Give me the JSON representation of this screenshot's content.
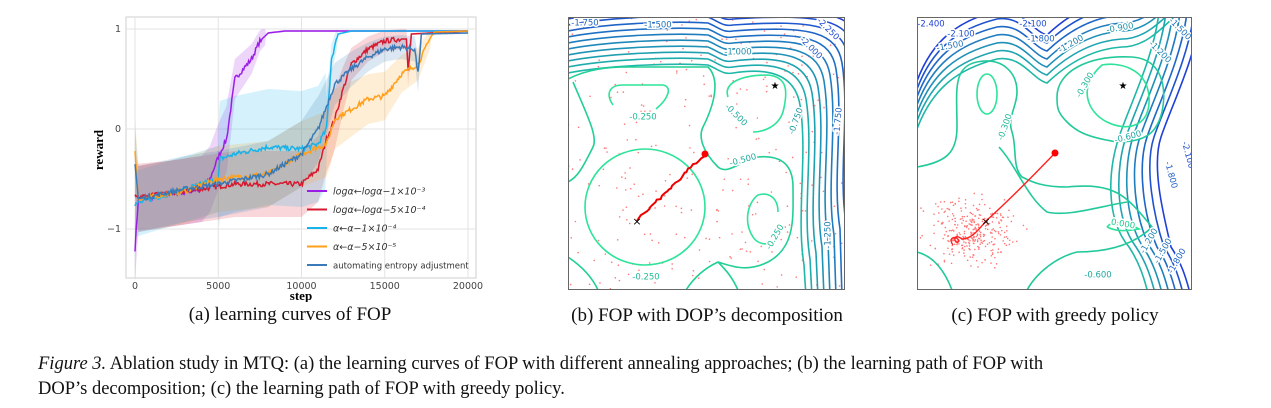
{
  "figure": {
    "subcaptions": [
      "(a) learning curves of FOP",
      "(b) FOP with DOP’s decomposition",
      "(c) FOP with greedy policy"
    ],
    "caption_label": "Figure 3.",
    "caption_line1": " Ablation study in MTQ: (a) the learning curves of FOP with different annealing approaches; (b) the learning path of FOP with",
    "caption_line2": "DOP’s decomposition; (c) the learning path of FOP with greedy policy."
  },
  "chart_data": [
    {
      "type": "line",
      "xlabel": "step",
      "ylabel": "reward",
      "xlim": [
        -500,
        20500
      ],
      "ylim": [
        -1.45,
        1.12
      ],
      "xticks": [
        0,
        5000,
        10000,
        15000,
        20000
      ],
      "xtick_labels": [
        "0",
        "5000",
        "10000",
        "15000",
        "20000"
      ],
      "yticks": [
        1,
        0,
        -1
      ],
      "ytick_labels": [
        "1",
        "0",
        "−1"
      ],
      "grid": true,
      "legend_placement": "lower-right",
      "shaded_bands": true,
      "series": [
        {
          "name": "logα←logα−1×10⁻³",
          "color": "#9b1ee6",
          "x": [
            0,
            200,
            2000,
            4000,
            4500,
            5000,
            5500,
            6000,
            7000,
            7500,
            8000,
            9000,
            20000
          ],
          "y": [
            -1.2,
            -0.7,
            -0.65,
            -0.6,
            -0.5,
            -0.28,
            -0.1,
            0.5,
            0.7,
            0.88,
            0.96,
            0.98,
            0.98
          ]
        },
        {
          "name": "logα←logα−5×10⁻⁴",
          "color": "#d7192f",
          "x": [
            0,
            2000,
            4000,
            6000,
            8000,
            10000,
            11000,
            11500,
            12000,
            12500,
            13000,
            14000,
            15000,
            16000,
            16300,
            16400,
            16600,
            20000
          ],
          "y": [
            -0.68,
            -0.65,
            -0.6,
            -0.55,
            -0.55,
            -0.55,
            -0.4,
            -0.1,
            0.1,
            0.4,
            0.65,
            0.8,
            0.88,
            0.9,
            0.9,
            0.6,
            0.95,
            0.98
          ]
        },
        {
          "name": "α←α−1×10⁻⁴",
          "color": "#17b3ea",
          "x": [
            0,
            3000,
            5000,
            5100,
            6000,
            8000,
            10000,
            11000,
            11500,
            11800,
            12200,
            13000,
            20000
          ],
          "y": [
            -0.75,
            -0.6,
            -0.5,
            -0.3,
            -0.25,
            -0.18,
            -0.2,
            -0.15,
            0.0,
            0.7,
            0.95,
            0.98,
            0.98
          ]
        },
        {
          "name": "α←α−5×10⁻⁵",
          "color": "#ff9f1a",
          "x": [
            0,
            200,
            3000,
            5000,
            8000,
            10000,
            11500,
            12000,
            13000,
            14000,
            15000,
            16000,
            17000,
            17800,
            18000,
            20000
          ],
          "y": [
            -0.2,
            -0.7,
            -0.62,
            -0.5,
            -0.45,
            -0.25,
            -0.15,
            0.1,
            0.2,
            0.3,
            0.33,
            0.55,
            0.65,
            0.93,
            0.97,
            0.98
          ]
        },
        {
          "name": "automating entropy adjustment",
          "color": "#3a7ab8",
          "x": [
            0,
            200,
            3000,
            5000,
            8000,
            10000,
            11000,
            12000,
            13000,
            14000,
            15000,
            16000,
            16800,
            17000,
            17200,
            20000
          ],
          "y": [
            -0.33,
            -0.7,
            -0.6,
            -0.55,
            -0.45,
            -0.25,
            0.0,
            0.45,
            0.6,
            0.72,
            0.8,
            0.82,
            0.8,
            0.55,
            0.95,
            0.96
          ]
        }
      ]
    },
    {
      "type": "contour",
      "contour_labels": [
        "-1.750",
        "-1.500",
        "-2.250",
        "-2.000",
        "-1.000",
        "-0.250",
        "-0.500",
        "-0.750",
        "-1.750",
        "-0.500",
        "-0.250",
        "-1.250",
        "-0.250"
      ],
      "markers": [
        "start (red dot)",
        "end (x)",
        "optimum (star)"
      ],
      "line_colors": [
        "#2bd99b",
        "#1f3fd6"
      ]
    },
    {
      "type": "contour",
      "contour_labels": [
        "-2.400",
        "-2.100",
        "-1.500",
        "-2.100",
        "-1.800",
        "-1.200",
        "-0.900",
        "-1.500",
        "-1.200",
        "-0.300",
        "-0.300",
        "-0.600",
        "-2.100",
        "-1.800",
        "0.000",
        "-1.200",
        "-1.500",
        "-1.800",
        "-0.600"
      ],
      "markers": [
        "start (red dot)",
        "end (x)",
        "optimum (star)"
      ],
      "line_colors": [
        "#2bd99b",
        "#1f3fd6"
      ]
    }
  ]
}
